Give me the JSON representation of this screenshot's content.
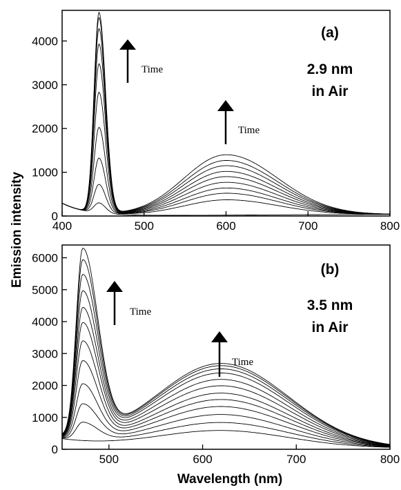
{
  "chart_data": [
    {
      "type": "line",
      "panel_label": "(a)",
      "annotation_lines": [
        "2.9 nm",
        "in Air"
      ],
      "time_label": "Time",
      "xlim": [
        400,
        800
      ],
      "ylim": [
        0,
        4700
      ],
      "xticks": [
        400,
        500,
        600,
        700,
        800
      ],
      "yticks": [
        0,
        1000,
        2000,
        3000,
        4000
      ],
      "grid": false,
      "peak1": {
        "center": 445,
        "width_left": 6,
        "width_right": 8
      },
      "peak2": {
        "center": 600,
        "width_left": 52,
        "width_right": 63
      },
      "baseline_start": 290,
      "baseline_decay": 30,
      "series": [
        {
          "peak1": 230,
          "peak2": 0
        },
        {
          "peak1": 650,
          "peak2": 350
        },
        {
          "peak1": 1250,
          "peak2": 500
        },
        {
          "peak1": 1950,
          "peak2": 620
        },
        {
          "peak1": 2750,
          "peak2": 750
        },
        {
          "peak1": 3400,
          "peak2": 880
        },
        {
          "peak1": 3850,
          "peak2": 1000
        },
        {
          "peak1": 4200,
          "peak2": 1130
        },
        {
          "peak1": 4450,
          "peak2": 1250
        },
        {
          "peak1": 4570,
          "peak2": 1380
        }
      ]
    },
    {
      "type": "line",
      "panel_label": "(b)",
      "annotation_lines": [
        "3.5 nm",
        "in Air"
      ],
      "time_label": "Time",
      "xlim": [
        450,
        800
      ],
      "ylim": [
        0,
        6400
      ],
      "xticks": [
        500,
        600,
        700,
        800
      ],
      "yticks": [
        0,
        1000,
        2000,
        3000,
        4000,
        5000,
        6000
      ],
      "grid": false,
      "peak1": {
        "center": 472,
        "width_left": 7,
        "width_right": 16
      },
      "peak2": {
        "center": 620,
        "width_left": 70,
        "width_right": 72
      },
      "baseline_start": 300,
      "baseline_decay": 60,
      "series": [
        {
          "peak1": 0,
          "peak2": 550
        },
        {
          "peak1": 550,
          "peak2": 800
        },
        {
          "peak1": 1100,
          "peak2": 1050
        },
        {
          "peak1": 1700,
          "peak2": 1300
        },
        {
          "peak1": 2400,
          "peak2": 1520
        },
        {
          "peak1": 3000,
          "peak2": 1720
        },
        {
          "peak1": 3550,
          "peak2": 1950
        },
        {
          "peak1": 4000,
          "peak2": 2150
        },
        {
          "peak1": 4500,
          "peak2": 2350
        },
        {
          "peak1": 5000,
          "peak2": 2480
        },
        {
          "peak1": 5450,
          "peak2": 2580
        },
        {
          "peak1": 5800,
          "peak2": 2650
        }
      ]
    }
  ],
  "shared_ylabel": "Emission intensity",
  "shared_xlabel": "Wavelength (nm)"
}
